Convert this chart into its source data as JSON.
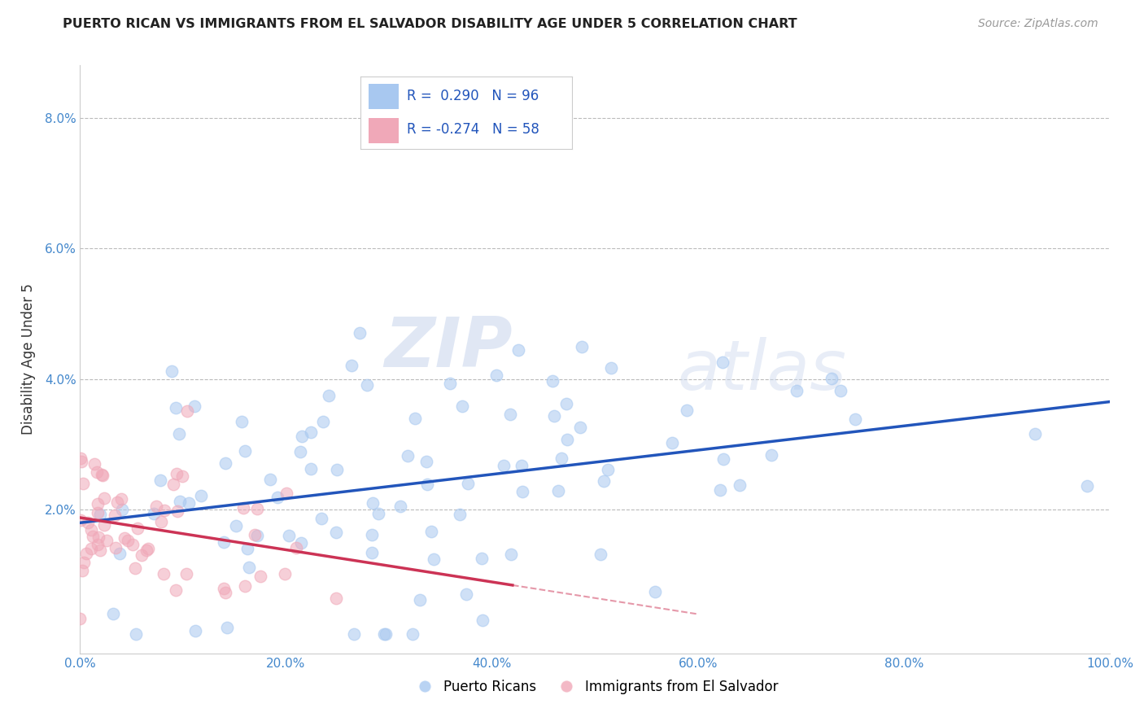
{
  "title": "PUERTO RICAN VS IMMIGRANTS FROM EL SALVADOR DISABILITY AGE UNDER 5 CORRELATION CHART",
  "source": "Source: ZipAtlas.com",
  "ylabel": "Disability Age Under 5",
  "xlim": [
    0.0,
    1.0
  ],
  "ylim": [
    -0.002,
    0.088
  ],
  "xticks": [
    0.0,
    0.2,
    0.4,
    0.6,
    0.8,
    1.0
  ],
  "xticklabels": [
    "0.0%",
    "20.0%",
    "40.0%",
    "60.0%",
    "80.0%",
    "100.0%"
  ],
  "yticks": [
    0.0,
    0.02,
    0.04,
    0.06,
    0.08
  ],
  "yticklabels": [
    "",
    "2.0%",
    "4.0%",
    "6.0%",
    "8.0%"
  ],
  "r_blue": 0.29,
  "n_blue": 96,
  "r_pink": -0.274,
  "n_pink": 58,
  "blue_color": "#a8c8f0",
  "pink_color": "#f0a8b8",
  "blue_line_color": "#2255bb",
  "pink_line_color": "#cc3355",
  "legend_blue_label": "Puerto Ricans",
  "legend_pink_label": "Immigrants from El Salvador",
  "watermark_zip": "ZIP",
  "watermark_atlas": "atlas",
  "grid_color": "#bbbbbb",
  "title_color": "#222222",
  "tick_color": "#4488cc",
  "source_color": "#999999"
}
